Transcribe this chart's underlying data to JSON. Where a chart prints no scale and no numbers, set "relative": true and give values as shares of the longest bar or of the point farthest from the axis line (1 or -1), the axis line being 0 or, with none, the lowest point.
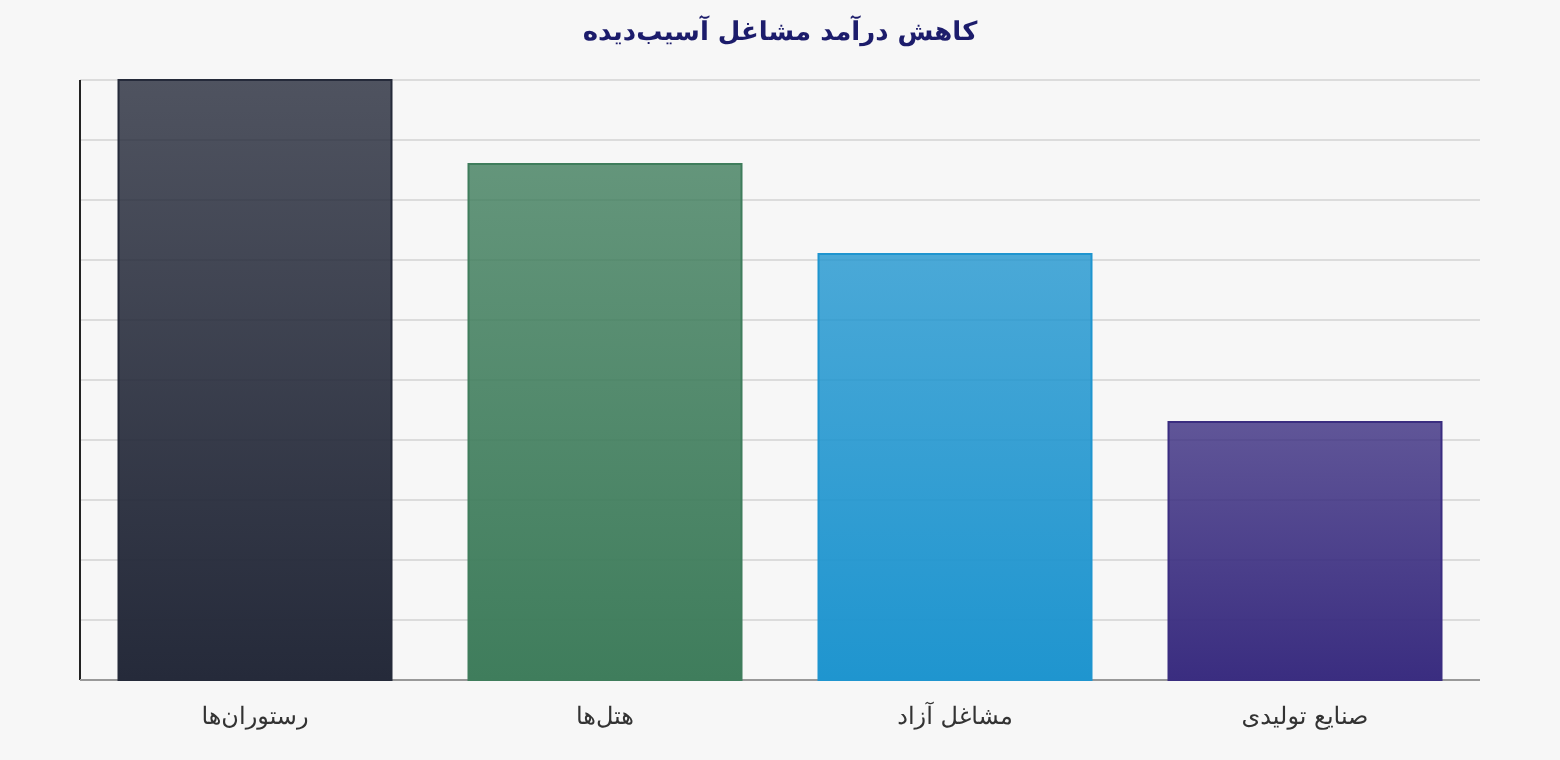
{
  "chart_data": {
    "type": "bar",
    "title": "کاهش درآمد مشاغل آسیب‌دیده",
    "categories": [
      "رستوران‌ها",
      "هتل‌ها",
      "مشاغل آزاد",
      "صنایع تولیدی"
    ],
    "values": [
      1,
      0.86,
      0.71,
      0.43
    ],
    "colors": [
      "#252a3a",
      "#3f7d5c",
      "#1f95cf",
      "#3a2d80"
    ],
    "relative": true,
    "grid": true
  }
}
